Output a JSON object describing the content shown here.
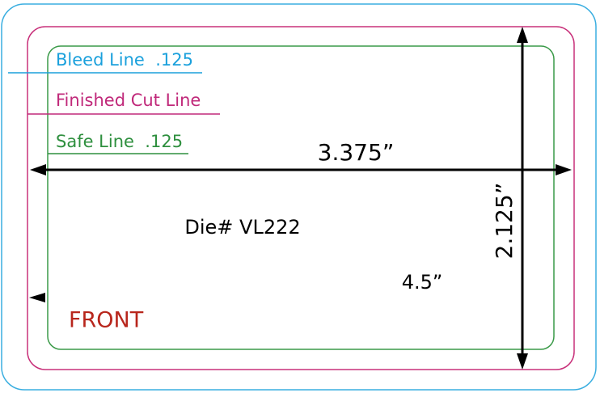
{
  "labels": {
    "bleed": "Bleed Line  .125",
    "cut": "Finished Cut Line",
    "safe": "Safe Line  .125"
  },
  "dimensions": {
    "width": "3.375”",
    "height": "2.125”",
    "other": "4.5”"
  },
  "die": "Die# VL222",
  "side": "FRONT"
}
